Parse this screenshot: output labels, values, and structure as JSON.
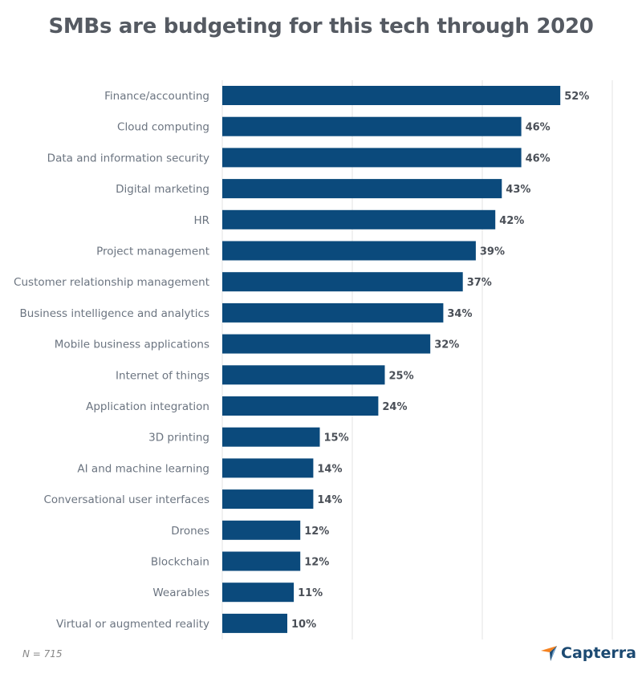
{
  "chart_data": {
    "type": "bar",
    "orientation": "horizontal",
    "title": "SMBs are budgeting for this tech through 2020",
    "categories": [
      "Finance/accounting",
      "Cloud computing",
      "Data and information security",
      "Digital marketing",
      "HR",
      "Project management",
      "Customer relationship management",
      "Business intelligence and analytics",
      "Mobile business applications",
      "Internet of things",
      "Application integration",
      "3D printing",
      "AI and machine learning",
      "Conversational user interfaces",
      "Drones",
      "Blockchain",
      "Wearables",
      "Virtual or augmented reality"
    ],
    "values": [
      52,
      46,
      46,
      43,
      42,
      39,
      37,
      34,
      32,
      25,
      24,
      15,
      14,
      14,
      12,
      12,
      11,
      10
    ],
    "value_suffix": "%",
    "xlim": [
      0,
      60
    ],
    "grid_ticks": [
      0,
      20,
      40,
      60
    ],
    "grid": true,
    "bar_color": "#0b4a7c",
    "xlabel": "",
    "ylabel": ""
  },
  "footnote": "N = 715",
  "logo": "Capterra"
}
